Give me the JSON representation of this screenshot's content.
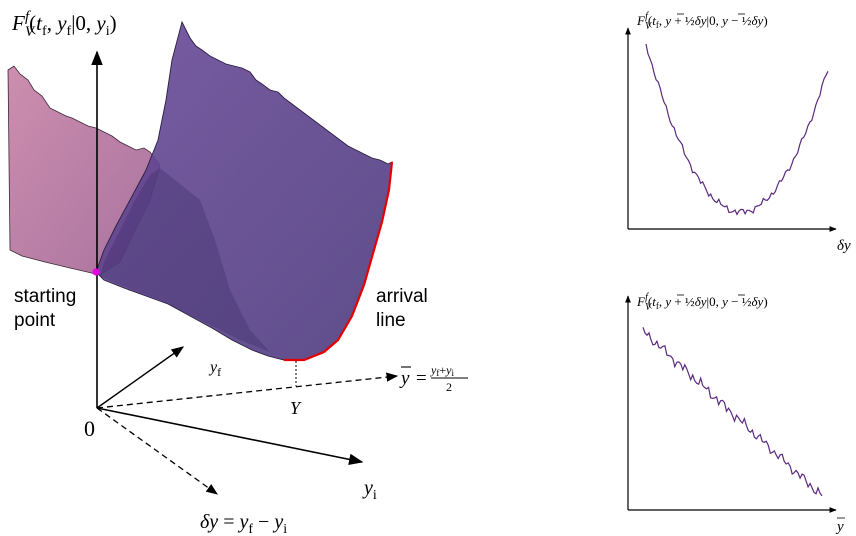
{
  "main_plot": {
    "vertical_axis_label": "F_V^f(t_f, y_f|0, y_i)",
    "origin_label": "0",
    "yf_axis_label": "y_f",
    "yi_axis_label": "y_i",
    "ybar_axis_label": "ȳ = (y_f + y_i)/2",
    "deltay_axis_label": "δy = y_f − y_i",
    "Y_label": "Y",
    "starting_point_label": [
      "starting",
      "point"
    ],
    "arrival_line_label": [
      "arrival",
      "line"
    ],
    "colors": {
      "front_surface": "#5a3f8a",
      "back_surface": "#b5668f",
      "arrival_line": "#e60000",
      "starting_point": "#e600e6"
    }
  },
  "top_right_plot": {
    "ylabel": "F_V^f(t_f, ȳ + ½δy|0, ȳ − ½δy)",
    "xlabel": "δy",
    "curve_color": "#5b2a80"
  },
  "bottom_right_plot": {
    "ylabel": "F_V^f(t_f, ȳ + ½δy|0, ȳ − ½δy)",
    "xlabel": "ȳ",
    "curve_color": "#5b2a80"
  }
}
